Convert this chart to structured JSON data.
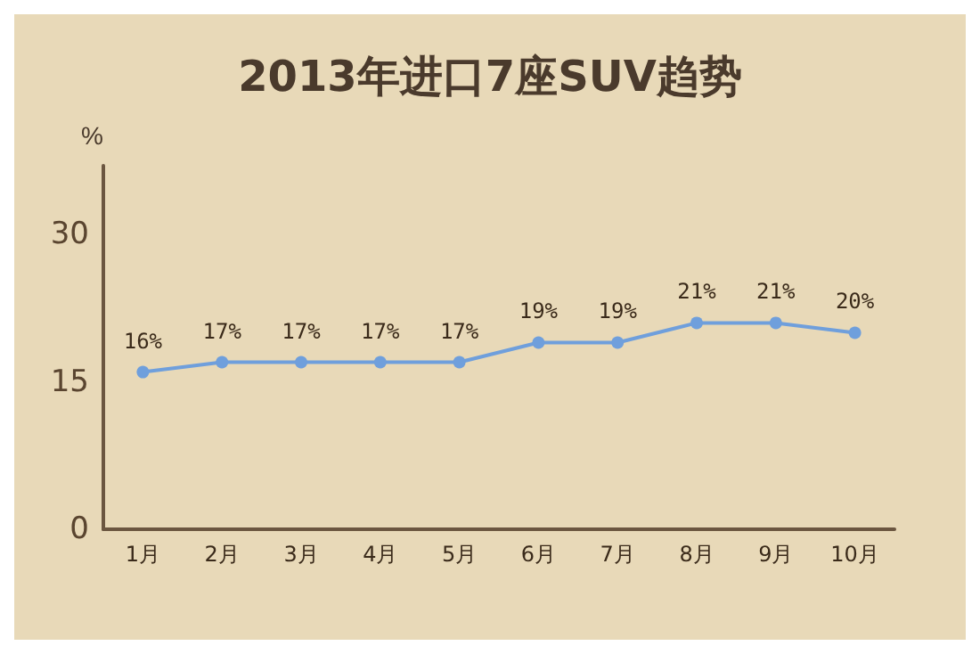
{
  "chart_data": {
    "type": "line",
    "title": "2013年进口7座SUV趋势",
    "ylabel": "%",
    "categories": [
      "1月",
      "2月",
      "3月",
      "4月",
      "5月",
      "6月",
      "7月",
      "8月",
      "9月",
      "10月"
    ],
    "series": [
      {
        "color": "#6f9fdc",
        "values": [
          16,
          17,
          17,
          17,
          17,
          19,
          19,
          21,
          21,
          20
        ],
        "value_labels": [
          "16%",
          "17%",
          "17%",
          "17%",
          "17%",
          "19%",
          "19%",
          "21%",
          "21%",
          "20%"
        ]
      }
    ],
    "ylim": [
      0,
      37
    ],
    "yticks": [
      0,
      15,
      30
    ],
    "grid": false,
    "marker": "circle",
    "line_style": "solid"
  }
}
